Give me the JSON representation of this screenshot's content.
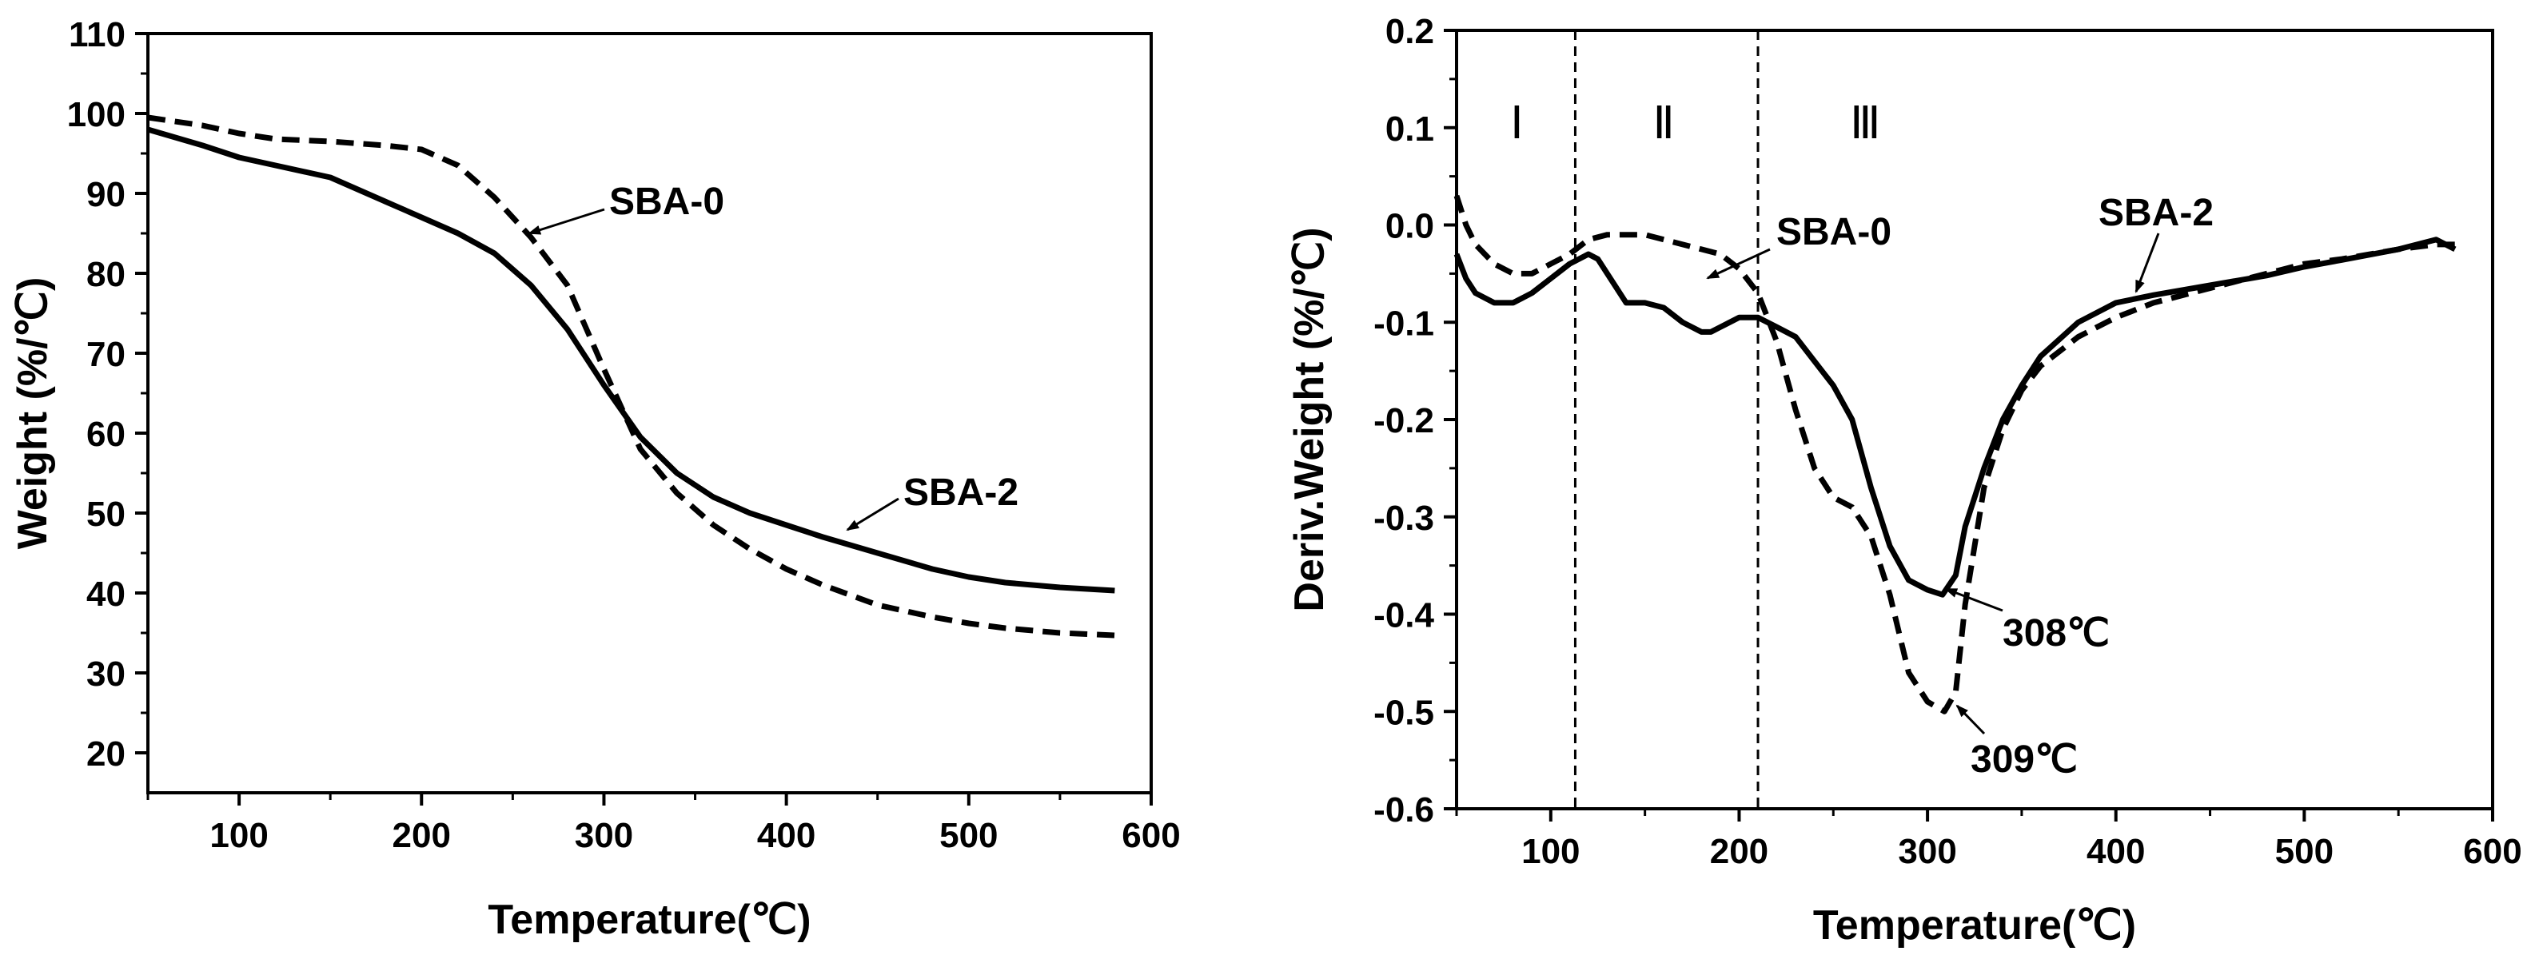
{
  "chart_data": [
    {
      "type": "line",
      "xlabel": "Temperature(℃)",
      "ylabel": "Weight (%/℃)",
      "xlim": [
        50,
        600
      ],
      "ylim": [
        15,
        110
      ],
      "xticks": [
        "100",
        "200",
        "300",
        "400",
        "500",
        "600"
      ],
      "xtick_values": [
        100,
        200,
        300,
        400,
        500,
        600
      ],
      "yticks": [
        "20",
        "30",
        "40",
        "50",
        "60",
        "70",
        "80",
        "90",
        "100",
        "110"
      ],
      "ytick_values": [
        20,
        30,
        40,
        50,
        60,
        70,
        80,
        90,
        100,
        110
      ],
      "grid": false,
      "series": [
        {
          "name": "SBA-0",
          "style": "dashed",
          "x": [
            50,
            80,
            100,
            120,
            150,
            180,
            200,
            220,
            240,
            260,
            280,
            300,
            320,
            340,
            360,
            380,
            400,
            420,
            450,
            480,
            500,
            520,
            550,
            580
          ],
          "y": [
            99.5,
            98.5,
            97.5,
            96.8,
            96.5,
            96.0,
            95.5,
            93.5,
            89.5,
            84.5,
            78.5,
            68.0,
            58.0,
            52.5,
            48.5,
            45.5,
            43.0,
            41.0,
            38.5,
            37.0,
            36.2,
            35.6,
            35.0,
            34.7
          ]
        },
        {
          "name": "SBA-2",
          "style": "solid",
          "x": [
            50,
            80,
            100,
            120,
            150,
            180,
            200,
            220,
            240,
            260,
            280,
            300,
            320,
            340,
            360,
            380,
            400,
            420,
            450,
            480,
            500,
            520,
            550,
            580
          ],
          "y": [
            98.0,
            96.0,
            94.5,
            93.5,
            92.0,
            89.0,
            87.0,
            85.0,
            82.5,
            78.5,
            73.0,
            66.0,
            59.5,
            55.0,
            52.0,
            50.0,
            48.5,
            47.0,
            45.0,
            43.0,
            42.0,
            41.3,
            40.7,
            40.3
          ]
        }
      ],
      "annotations": [
        {
          "text": "SBA-0",
          "arrow_to": [
            258,
            85
          ]
        },
        {
          "text": "SBA-2",
          "arrow_to": [
            430,
            47
          ]
        }
      ]
    },
    {
      "type": "line",
      "xlabel": "Temperature(℃)",
      "ylabel": "Deriv.Weight (%/℃)",
      "xlim": [
        50,
        600
      ],
      "ylim": [
        -0.6,
        0.2
      ],
      "xticks": [
        "100",
        "200",
        "300",
        "400",
        "500",
        "600"
      ],
      "xtick_values": [
        100,
        200,
        300,
        400,
        500,
        600
      ],
      "yticks": [
        "-0.6",
        "-0.5",
        "-0.4",
        "-0.3",
        "-0.2",
        "-0.1",
        "0.0",
        "0.1",
        "0.2"
      ],
      "ytick_values": [
        -0.6,
        -0.5,
        -0.4,
        -0.3,
        -0.2,
        -0.1,
        0.0,
        0.1,
        0.2
      ],
      "grid": false,
      "region_dividers_x": [
        113,
        210
      ],
      "regions": [
        {
          "label": "Ⅰ",
          "x": 82
        },
        {
          "label": "Ⅱ",
          "x": 160
        },
        {
          "label": "Ⅲ",
          "x": 267
        }
      ],
      "series": [
        {
          "name": "SBA-0",
          "style": "dashed",
          "x": [
            50,
            55,
            60,
            70,
            80,
            90,
            100,
            110,
            120,
            130,
            140,
            150,
            160,
            170,
            180,
            190,
            200,
            210,
            220,
            230,
            240,
            250,
            260,
            270,
            280,
            290,
            300,
            309,
            315,
            320,
            330,
            340,
            350,
            360,
            380,
            400,
            420,
            450,
            480,
            500,
            520,
            550,
            570,
            580
          ],
          "y": [
            0.03,
            0.0,
            -0.02,
            -0.04,
            -0.05,
            -0.05,
            -0.04,
            -0.03,
            -0.015,
            -0.01,
            -0.01,
            -0.01,
            -0.015,
            -0.02,
            -0.025,
            -0.03,
            -0.045,
            -0.07,
            -0.12,
            -0.19,
            -0.25,
            -0.28,
            -0.29,
            -0.32,
            -0.38,
            -0.46,
            -0.49,
            -0.5,
            -0.48,
            -0.39,
            -0.27,
            -0.21,
            -0.17,
            -0.145,
            -0.115,
            -0.095,
            -0.08,
            -0.065,
            -0.05,
            -0.04,
            -0.035,
            -0.025,
            -0.02,
            -0.02
          ]
        },
        {
          "name": "SBA-2",
          "style": "solid",
          "x": [
            50,
            55,
            60,
            70,
            80,
            90,
            100,
            110,
            120,
            125,
            130,
            140,
            150,
            160,
            170,
            180,
            185,
            190,
            200,
            210,
            220,
            230,
            240,
            250,
            260,
            270,
            280,
            290,
            300,
            308,
            315,
            320,
            330,
            340,
            350,
            360,
            380,
            400,
            420,
            450,
            480,
            500,
            520,
            550,
            570,
            580
          ],
          "y": [
            -0.03,
            -0.055,
            -0.07,
            -0.08,
            -0.08,
            -0.07,
            -0.055,
            -0.04,
            -0.03,
            -0.035,
            -0.05,
            -0.08,
            -0.08,
            -0.085,
            -0.1,
            -0.11,
            -0.11,
            -0.105,
            -0.095,
            -0.095,
            -0.105,
            -0.115,
            -0.14,
            -0.165,
            -0.2,
            -0.27,
            -0.33,
            -0.365,
            -0.375,
            -0.38,
            -0.36,
            -0.31,
            -0.25,
            -0.2,
            -0.165,
            -0.135,
            -0.1,
            -0.08,
            -0.072,
            -0.062,
            -0.052,
            -0.043,
            -0.036,
            -0.025,
            -0.015,
            -0.025
          ]
        }
      ],
      "annotations": [
        {
          "text": "SBA-0",
          "arrow_to": [
            205,
            -0.063
          ]
        },
        {
          "text": "SBA-2",
          "arrow_to": [
            400,
            -0.075
          ]
        },
        {
          "text": "308℃",
          "arrow_to": [
            308,
            -0.38
          ]
        },
        {
          "text": "309℃",
          "arrow_to": [
            309,
            -0.5
          ]
        }
      ]
    }
  ]
}
